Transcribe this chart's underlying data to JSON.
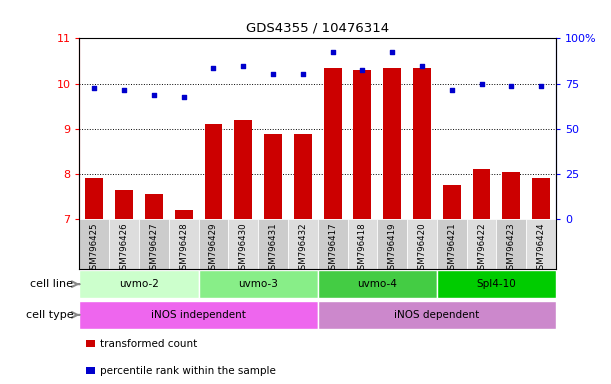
{
  "title": "GDS4355 / 10476314",
  "samples": [
    "GSM796425",
    "GSM796426",
    "GSM796427",
    "GSM796428",
    "GSM796429",
    "GSM796430",
    "GSM796431",
    "GSM796432",
    "GSM796417",
    "GSM796418",
    "GSM796419",
    "GSM796420",
    "GSM796421",
    "GSM796422",
    "GSM796423",
    "GSM796424"
  ],
  "bar_values": [
    7.9,
    7.65,
    7.55,
    7.2,
    9.1,
    9.2,
    8.88,
    8.88,
    10.35,
    10.3,
    10.35,
    10.35,
    7.75,
    8.1,
    8.05,
    7.9
  ],
  "dot_values_left_scale": [
    9.9,
    9.85,
    9.75,
    9.7,
    10.35,
    10.38,
    10.2,
    10.2,
    10.7,
    10.3,
    10.7,
    10.38,
    9.85,
    10.0,
    9.95,
    9.95
  ],
  "bar_color": "#cc0000",
  "dot_color": "#0000cc",
  "ylim_left": [
    7,
    11
  ],
  "ylim_right": [
    0,
    100
  ],
  "yticks_left": [
    7,
    8,
    9,
    10,
    11
  ],
  "yticks_right": [
    0,
    25,
    50,
    75,
    100
  ],
  "ytick_labels_right": [
    "0",
    "25",
    "50",
    "75",
    "100%"
  ],
  "cell_line_groups": [
    {
      "label": "uvmo-2",
      "start": 0,
      "end": 3,
      "color": "#ccffcc"
    },
    {
      "label": "uvmo-3",
      "start": 4,
      "end": 7,
      "color": "#88ee88"
    },
    {
      "label": "uvmo-4",
      "start": 8,
      "end": 11,
      "color": "#44cc44"
    },
    {
      "label": "Spl4-10",
      "start": 12,
      "end": 15,
      "color": "#00cc00"
    }
  ],
  "cell_type_groups": [
    {
      "label": "iNOS independent",
      "start": 0,
      "end": 7,
      "color": "#ee66ee"
    },
    {
      "label": "iNOS dependent",
      "start": 8,
      "end": 15,
      "color": "#cc88cc"
    }
  ],
  "cell_line_label": "cell line",
  "cell_type_label": "cell type",
  "legend_bar_label": "transformed count",
  "legend_dot_label": "percentile rank within the sample",
  "bar_width": 0.6,
  "sample_box_color": "#cccccc",
  "sample_box_color_alt": "#dddddd"
}
